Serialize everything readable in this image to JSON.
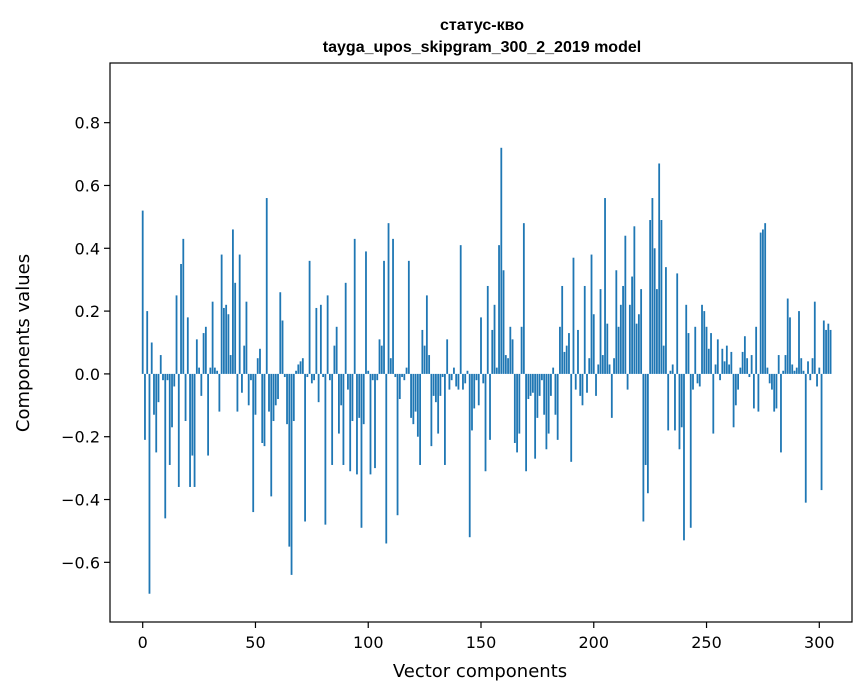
{
  "chart_data": {
    "type": "bar",
    "title": "статус-кво",
    "subtitle": "tayga_upos_skipgram_300_2_2019 model",
    "xlabel": "Vector components",
    "ylabel": "Components values",
    "xlim": [
      -14.5,
      314.5
    ],
    "ylim": [
      -0.79,
      0.99
    ],
    "xticks": [
      0,
      50,
      100,
      150,
      200,
      250,
      300
    ],
    "yticks": [
      -0.6,
      -0.4,
      -0.2,
      0.0,
      0.2,
      0.4,
      0.6,
      0.8
    ],
    "ytick_labels": [
      "−0.6",
      "−0.4",
      "−0.2",
      "0.0",
      "0.2",
      "0.4",
      "0.6",
      "0.8"
    ],
    "grid": false,
    "bar_color": "#1f77b4",
    "values": [
      0.52,
      -0.21,
      0.2,
      -0.7,
      0.1,
      -0.13,
      -0.25,
      -0.09,
      0.06,
      -0.02,
      -0.46,
      -0.02,
      -0.29,
      -0.17,
      -0.04,
      0.25,
      -0.36,
      0.35,
      0.43,
      -0.15,
      0.18,
      -0.36,
      -0.26,
      -0.36,
      0.11,
      0.02,
      -0.07,
      0.13,
      0.15,
      -0.26,
      0.02,
      0.23,
      0.02,
      0.01,
      -0.12,
      0.38,
      0.21,
      0.22,
      0.19,
      0.06,
      0.46,
      0.29,
      -0.12,
      0.38,
      -0.06,
      0.09,
      0.23,
      -0.1,
      -0.02,
      -0.44,
      -0.13,
      0.05,
      0.08,
      -0.22,
      -0.23,
      0.56,
      -0.12,
      -0.39,
      -0.15,
      -0.1,
      -0.08,
      0.26,
      0.17,
      -0.01,
      -0.16,
      -0.55,
      -0.64,
      -0.15,
      0.01,
      0.03,
      0.04,
      0.05,
      -0.47,
      -0.01,
      0.36,
      -0.03,
      -0.02,
      0.21,
      -0.09,
      0.22,
      -0.01,
      -0.48,
      0.25,
      -0.02,
      -0.29,
      0.09,
      0.15,
      -0.19,
      -0.1,
      -0.29,
      0.29,
      -0.05,
      -0.31,
      -0.15,
      0.43,
      -0.32,
      -0.14,
      -0.49,
      -0.16,
      0.39,
      0.01,
      -0.32,
      -0.02,
      -0.3,
      -0.02,
      0.11,
      0.09,
      0.36,
      -0.54,
      0.48,
      0.05,
      0.43,
      -0.01,
      -0.45,
      -0.08,
      -0.01,
      -0.02,
      0.02,
      0.36,
      -0.14,
      -0.16,
      -0.12,
      -0.2,
      -0.29,
      0.14,
      0.09,
      0.25,
      0.06,
      -0.23,
      -0.07,
      -0.09,
      -0.19,
      -0.07,
      -0.01,
      -0.29,
      0.11,
      -0.05,
      -0.02,
      0.02,
      -0.04,
      -0.05,
      0.41,
      -0.05,
      -0.03,
      0.01,
      -0.52,
      -0.18,
      -0.11,
      -0.02,
      -0.1,
      0.18,
      -0.03,
      -0.31,
      0.28,
      -0.21,
      0.14,
      0.22,
      0.02,
      0.41,
      0.72,
      0.33,
      0.06,
      0.05,
      0.15,
      0.11,
      -0.22,
      -0.25,
      -0.19,
      0.15,
      0.48,
      -0.31,
      -0.08,
      -0.07,
      -0.06,
      -0.27,
      -0.14,
      -0.07,
      -0.02,
      -0.13,
      -0.24,
      -0.19,
      -0.07,
      0.02,
      -0.13,
      -0.21,
      0.15,
      0.28,
      0.07,
      0.09,
      0.13,
      -0.28,
      0.37,
      -0.05,
      0.14,
      -0.07,
      -0.1,
      0.28,
      -0.06,
      0.05,
      0.38,
      0.19,
      -0.07,
      0.03,
      0.27,
      0.06,
      0.56,
      0.16,
      0.03,
      -0.14,
      0.05,
      0.33,
      0.15,
      0.22,
      0.28,
      0.44,
      -0.05,
      0.22,
      0.31,
      0.47,
      0.16,
      0.19,
      0.27,
      -0.47,
      -0.29,
      -0.38,
      0.49,
      0.56,
      0.4,
      0.27,
      0.67,
      0.49,
      0.09,
      0.34,
      -0.18,
      0.01,
      0.03,
      -0.18,
      0.32,
      -0.24,
      -0.17,
      -0.53,
      0.22,
      0.13,
      -0.49,
      -0.05,
      0.15,
      -0.03,
      -0.04,
      0.22,
      0.2,
      0.15,
      0.08,
      0.13,
      -0.19,
      0.03,
      0.11,
      -0.02,
      0.08,
      0.04,
      0.09,
      0.03,
      0.07,
      -0.17,
      -0.1,
      -0.05,
      0.02,
      0.07,
      0.12,
      0.05,
      -0.01,
      0.06,
      -0.11,
      0.15,
      -0.12,
      0.45,
      0.46,
      0.48,
      0.02,
      -0.03,
      -0.05,
      -0.12,
      -0.11,
      0.06,
      -0.25,
      0.01,
      0.06,
      0.24,
      0.18,
      0.03,
      0.01,
      0.02,
      0.2,
      0.05,
      0.01,
      -0.41,
      0.04,
      -0.02,
      0.05,
      0.23,
      -0.04,
      0.02,
      -0.37,
      0.17,
      0.14,
      0.16,
      0.14
    ]
  }
}
